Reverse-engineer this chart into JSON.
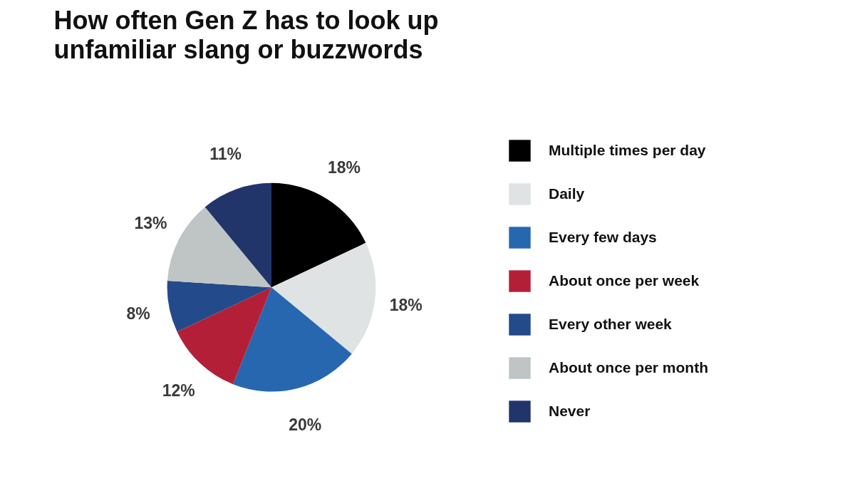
{
  "chart_data": {
    "type": "pie",
    "title": "How often Gen Z has to look up\nunfamiliar slang or buzzwords",
    "categories": [
      "Multiple times per day",
      "Daily",
      "Every few days",
      "About once per week",
      "Every other week",
      "About once per month",
      "Never"
    ],
    "values": [
      18,
      18,
      20,
      12,
      8,
      13,
      11
    ],
    "colors": [
      "#000000",
      "#dfe3e3",
      "#2667b0",
      "#b41f38",
      "#234a8a",
      "#bfc5c5",
      "#22356a"
    ],
    "value_labels": [
      "18%",
      "18%",
      "20%",
      "12%",
      "8%",
      "13%",
      "11%"
    ],
    "legend": "right"
  }
}
